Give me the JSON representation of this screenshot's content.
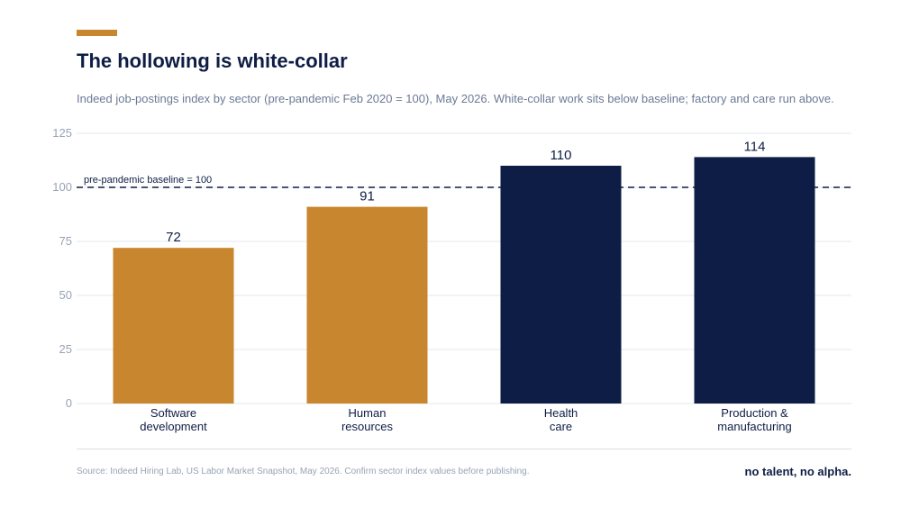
{
  "header": {
    "title": "The hollowing is white-collar",
    "subtitle": "Indeed job-postings index by sector (pre-pandemic Feb 2020 = 100), May 2026. White-collar work sits below baseline; factory and care run above."
  },
  "chart_data": {
    "type": "bar",
    "categories": [
      [
        "Software",
        "development"
      ],
      [
        "Human",
        "resources"
      ],
      [
        "Health",
        "care"
      ],
      [
        "Production &",
        "manufacturing"
      ]
    ],
    "values": [
      72,
      91,
      110,
      114
    ],
    "bar_colors": [
      "#c8862e",
      "#c8862e",
      "#0e1d45",
      "#0e1d45"
    ],
    "ylim": [
      0,
      125
    ],
    "yticks": [
      0,
      25,
      50,
      75,
      100,
      125
    ],
    "grid": true,
    "baseline": {
      "value": 100,
      "label": "pre-pandemic baseline = 100"
    }
  },
  "footer": {
    "source": "Source: Indeed Hiring Lab, US Labor Market Snapshot, May 2026. Confirm sector index values before publishing.",
    "brand": "no talent, no alpha."
  },
  "colors": {
    "accent": "#c8862e",
    "navy": "#0e1d45",
    "grid": "#e3e7ee",
    "tick_text": "#98a3b5"
  }
}
